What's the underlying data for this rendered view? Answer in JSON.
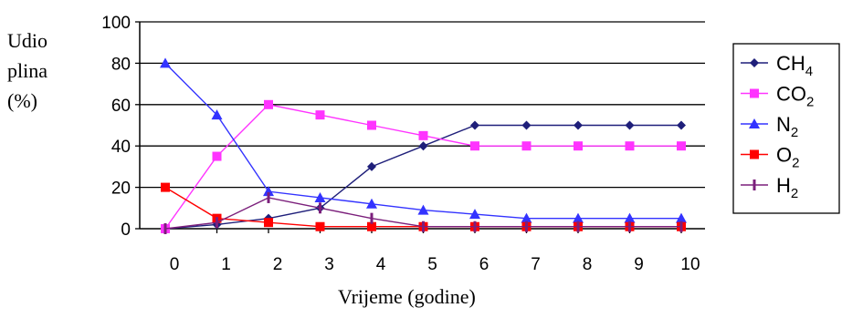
{
  "chart_data": {
    "type": "line",
    "xlabel": "Vrijeme (godine)",
    "ylabel_lines": [
      "Udio",
      "plina",
      "(%)"
    ],
    "x": [
      0,
      1,
      2,
      3,
      4,
      5,
      6,
      7,
      8,
      9,
      10
    ],
    "xlim": [
      0,
      10
    ],
    "ylim": [
      0,
      100
    ],
    "yticks": [
      0,
      20,
      40,
      60,
      80,
      100
    ],
    "grid": "horizontal",
    "legend_position": "right",
    "series": [
      {
        "name": "CH4",
        "name_base": "CH",
        "name_sub": "4",
        "color": "#1f1f7a",
        "marker": "diamond",
        "values": [
          0,
          2,
          5,
          10,
          30,
          40,
          50,
          50,
          50,
          50,
          50
        ]
      },
      {
        "name": "CO2",
        "name_base": "CO",
        "name_sub": "2",
        "color": "#ff33ff",
        "marker": "square",
        "values": [
          0,
          35,
          60,
          55,
          50,
          45,
          40,
          40,
          40,
          40,
          40
        ]
      },
      {
        "name": "N2",
        "name_base": "N",
        "name_sub": "2",
        "color": "#3333ff",
        "marker": "triangle",
        "values": [
          80,
          55,
          18,
          15,
          12,
          9,
          7,
          5,
          5,
          5,
          5
        ]
      },
      {
        "name": "O2",
        "name_base": "O",
        "name_sub": "2",
        "color": "#ff0000",
        "marker": "square",
        "values": [
          20,
          5,
          3,
          1,
          1,
          1,
          1,
          1,
          1,
          1,
          1
        ]
      },
      {
        "name": "H2",
        "name_base": "H",
        "name_sub": "2",
        "color": "#7b1f7b",
        "marker": "bar",
        "values": [
          0,
          3,
          15,
          10,
          5,
          1,
          1,
          1,
          1,
          1,
          1
        ]
      }
    ]
  }
}
